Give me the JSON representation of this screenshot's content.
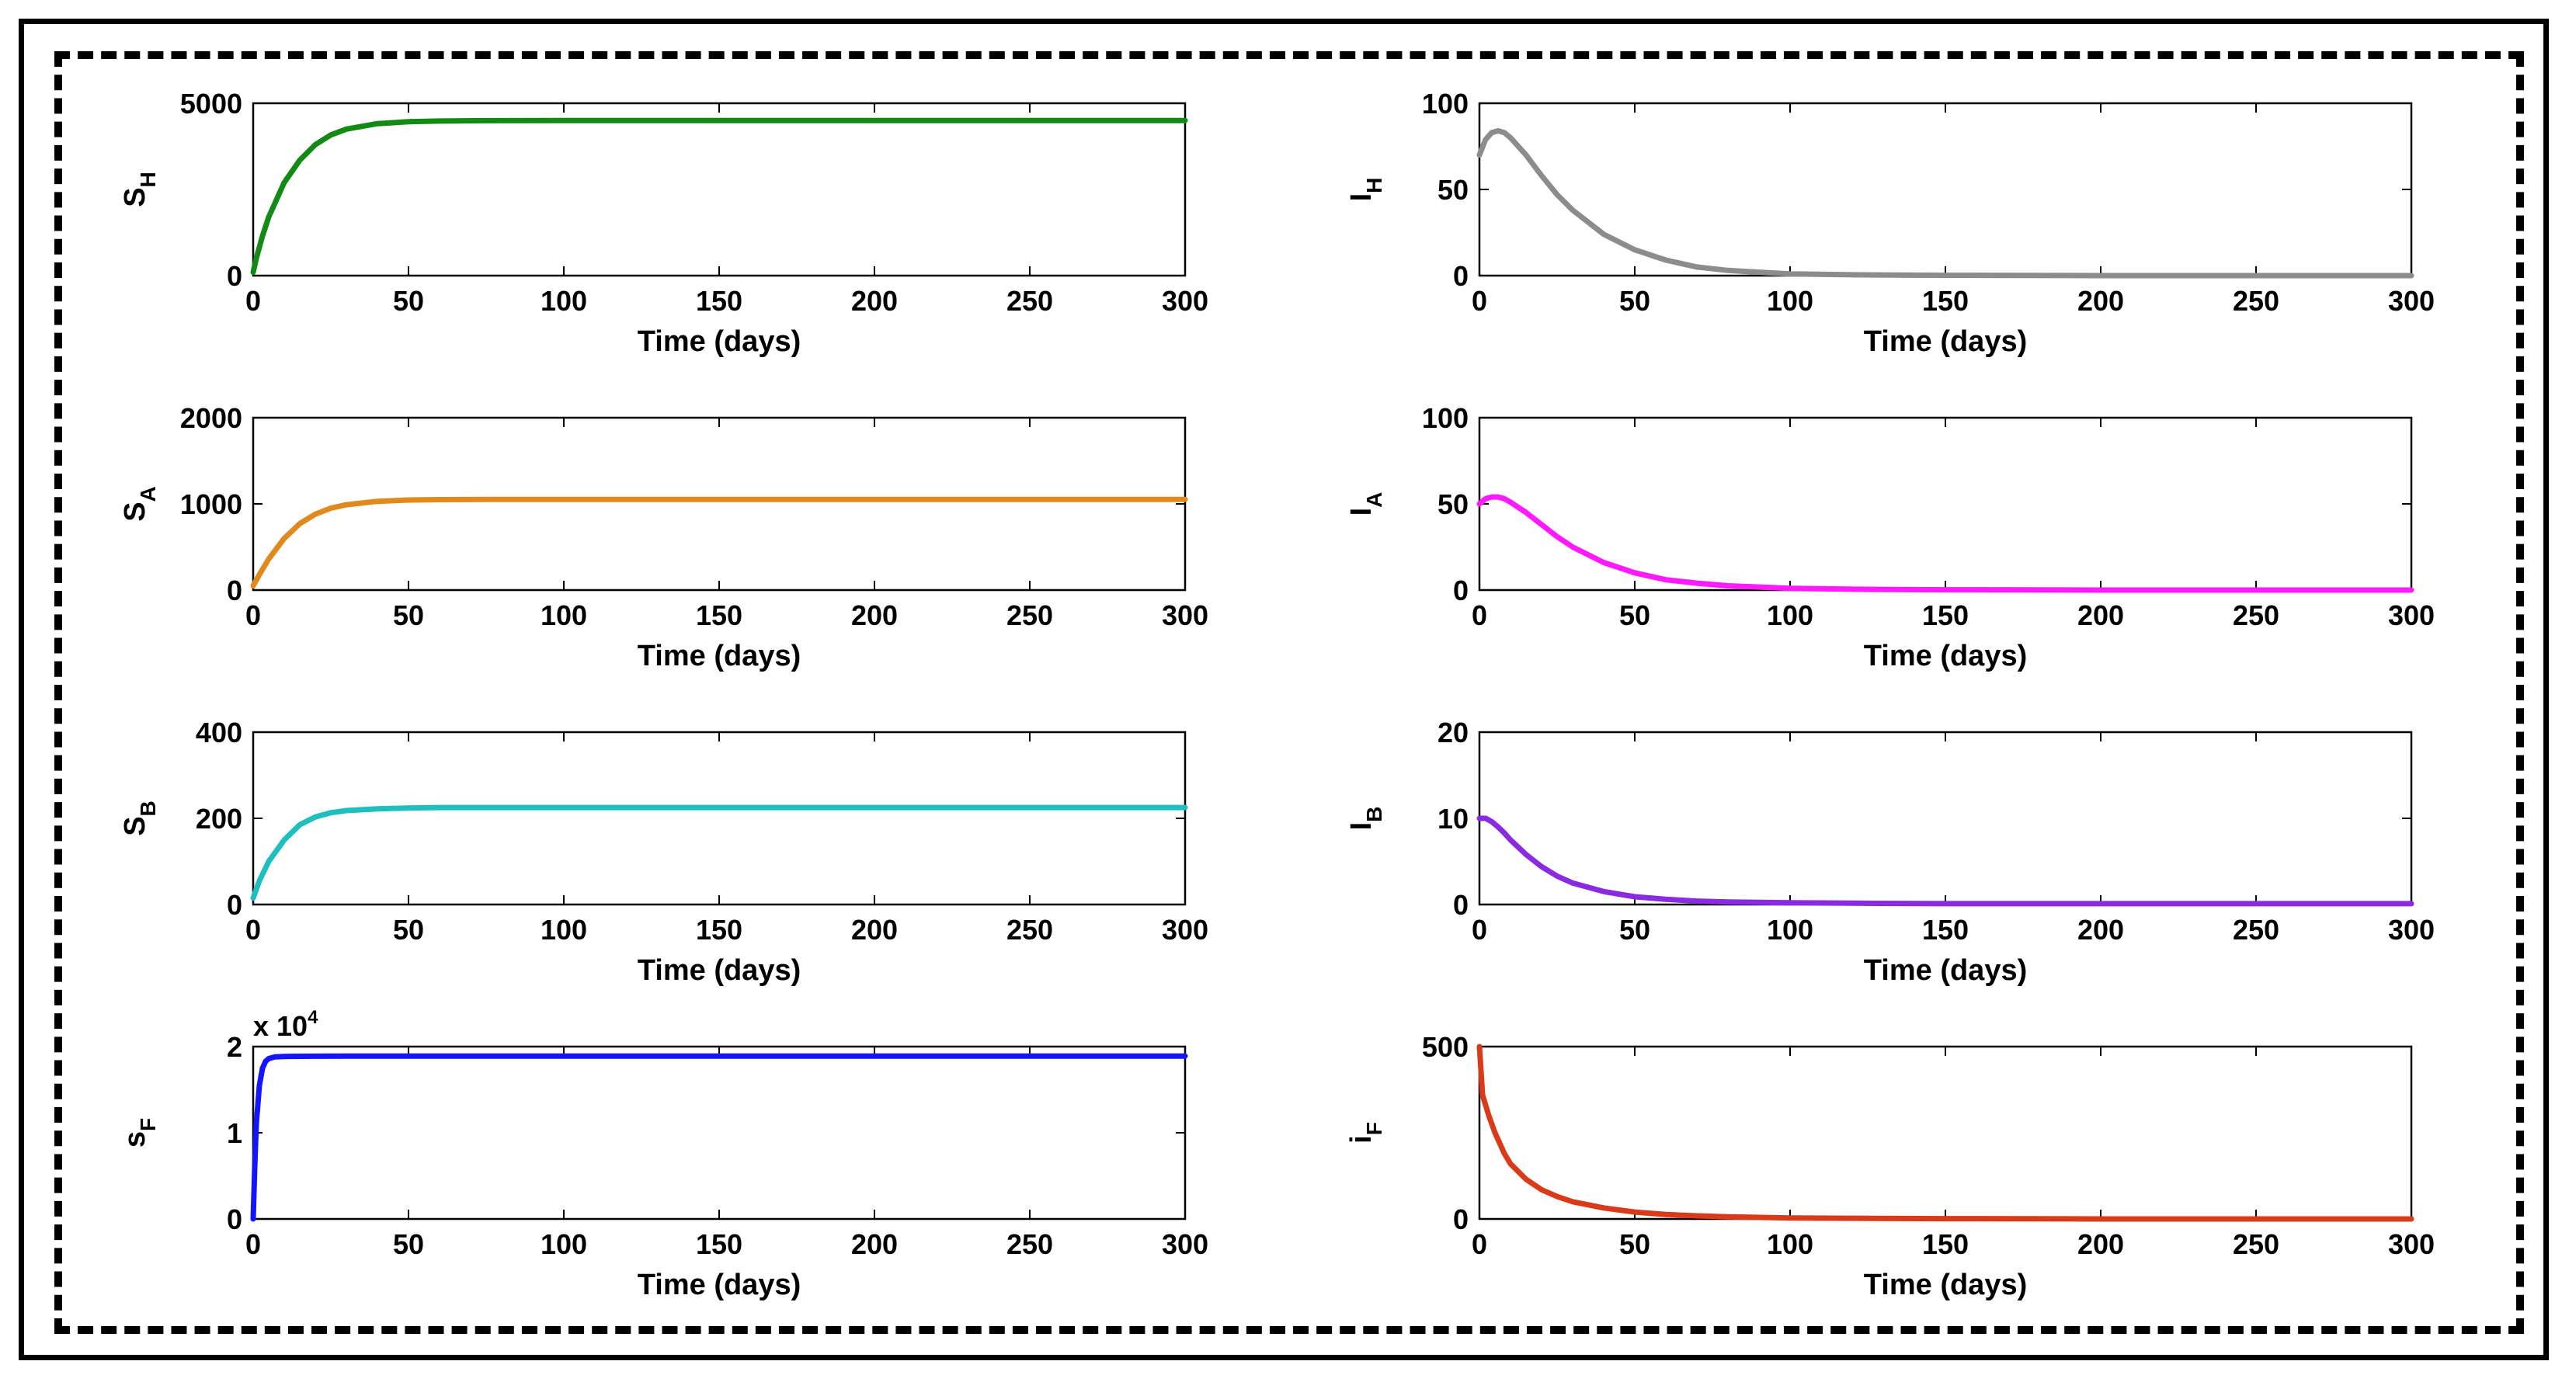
{
  "chart_data": [
    {
      "type": "line",
      "panel": "S_H",
      "color": "#138a13",
      "ylabel": "S",
      "ylabel_sub": "H",
      "xlabel": "Time (days)",
      "xlim": [
        0,
        300
      ],
      "ylim": [
        0,
        5000
      ],
      "xticks": [
        "0",
        "50",
        "100",
        "150",
        "200",
        "250",
        "300"
      ],
      "yticks": [
        "0",
        "5000"
      ],
      "ytick_values": [
        0,
        5000
      ],
      "exponent": "",
      "x": [
        0,
        1,
        3,
        5,
        10,
        15,
        20,
        25,
        30,
        40,
        50,
        60,
        75,
        100,
        150,
        200,
        250,
        300
      ],
      "y": [
        100,
        500,
        1150,
        1700,
        2700,
        3350,
        3800,
        4080,
        4250,
        4410,
        4465,
        4485,
        4495,
        4500,
        4500,
        4500,
        4500,
        4500
      ]
    },
    {
      "type": "line",
      "panel": "I_H",
      "color": "#8c8c8c",
      "ylabel": "I",
      "ylabel_sub": "H",
      "xlabel": "Time (days)",
      "xlim": [
        0,
        300
      ],
      "ylim": [
        0,
        100
      ],
      "xticks": [
        "0",
        "50",
        "100",
        "150",
        "200",
        "250",
        "300"
      ],
      "yticks": [
        "0",
        "50",
        "100"
      ],
      "ytick_values": [
        0,
        50,
        100
      ],
      "exponent": "",
      "x": [
        0,
        2,
        4,
        6,
        8,
        10,
        15,
        20,
        25,
        30,
        40,
        50,
        60,
        70,
        80,
        90,
        100,
        120,
        150,
        200,
        250,
        300
      ],
      "y": [
        70,
        79,
        83,
        84,
        83,
        80,
        70,
        58,
        47,
        38,
        24,
        15,
        9,
        5,
        3,
        2,
        1,
        0.5,
        0.2,
        0,
        0,
        0
      ]
    },
    {
      "type": "line",
      "panel": "S_A",
      "color": "#e08a1e",
      "ylabel": "S",
      "ylabel_sub": "A",
      "xlabel": "Time (days)",
      "xlim": [
        0,
        300
      ],
      "ylim": [
        0,
        2000
      ],
      "xticks": [
        "0",
        "50",
        "100",
        "150",
        "200",
        "250",
        "300"
      ],
      "yticks": [
        "0",
        "1000",
        "2000"
      ],
      "ytick_values": [
        0,
        1000,
        2000
      ],
      "exponent": "",
      "x": [
        0,
        2,
        5,
        10,
        15,
        20,
        25,
        30,
        40,
        50,
        60,
        75,
        100,
        150,
        200,
        250,
        300
      ],
      "y": [
        50,
        180,
        360,
        600,
        770,
        880,
        950,
        990,
        1030,
        1045,
        1050,
        1052,
        1052,
        1052,
        1052,
        1052,
        1052
      ]
    },
    {
      "type": "line",
      "panel": "I_A",
      "color": "#ff1aff",
      "ylabel": "I",
      "ylabel_sub": "A",
      "xlabel": "Time (days)",
      "xlim": [
        0,
        300
      ],
      "ylim": [
        0,
        100
      ],
      "xticks": [
        "0",
        "50",
        "100",
        "150",
        "200",
        "250",
        "300"
      ],
      "yticks": [
        "0",
        "50",
        "100"
      ],
      "ytick_values": [
        0,
        50,
        100
      ],
      "exponent": "",
      "x": [
        0,
        2,
        4,
        6,
        8,
        10,
        15,
        20,
        25,
        30,
        40,
        50,
        60,
        70,
        80,
        100,
        120,
        150,
        200,
        250,
        300
      ],
      "y": [
        50,
        53,
        54,
        54,
        53,
        51,
        45,
        38,
        31,
        25,
        16,
        10,
        6,
        4,
        2.5,
        1,
        0.5,
        0.2,
        0,
        0,
        0
      ]
    },
    {
      "type": "line",
      "panel": "S_B",
      "color": "#1fbfbf",
      "ylabel": "S",
      "ylabel_sub": "B",
      "xlabel": "Time (days)",
      "xlim": [
        0,
        300
      ],
      "ylim": [
        0,
        400
      ],
      "xticks": [
        "0",
        "50",
        "100",
        "150",
        "200",
        "250",
        "300"
      ],
      "yticks": [
        "0",
        "200",
        "400"
      ],
      "ytick_values": [
        0,
        200,
        400
      ],
      "exponent": "",
      "x": [
        0,
        2,
        5,
        10,
        15,
        20,
        25,
        30,
        40,
        50,
        60,
        75,
        100,
        150,
        200,
        250,
        300
      ],
      "y": [
        15,
        55,
        100,
        150,
        185,
        203,
        213,
        218,
        222,
        224,
        225,
        225,
        225,
        225,
        225,
        225,
        225
      ]
    },
    {
      "type": "line",
      "panel": "I_B",
      "color": "#8a2be2",
      "ylabel": "I",
      "ylabel_sub": "B",
      "xlabel": "Time (days)",
      "xlim": [
        0,
        300
      ],
      "ylim": [
        0,
        20
      ],
      "xticks": [
        "0",
        "50",
        "100",
        "150",
        "200",
        "250",
        "300"
      ],
      "yticks": [
        "0",
        "10",
        "20"
      ],
      "ytick_values": [
        0,
        10,
        20
      ],
      "exponent": "",
      "x": [
        0,
        2,
        4,
        6,
        8,
        10,
        15,
        20,
        25,
        30,
        40,
        50,
        60,
        70,
        80,
        100,
        120,
        150,
        200,
        250,
        300
      ],
      "y": [
        10,
        10,
        9.6,
        9,
        8.3,
        7.5,
        5.8,
        4.4,
        3.3,
        2.5,
        1.5,
        0.9,
        0.6,
        0.4,
        0.3,
        0.2,
        0.15,
        0.1,
        0.1,
        0.1,
        0.1
      ]
    },
    {
      "type": "line",
      "panel": "s_F",
      "color": "#1414ff",
      "ylabel": "s",
      "ylabel_sub": "F",
      "xlabel": "Time (days)",
      "xlim": [
        0,
        300
      ],
      "ylim": [
        0,
        20000
      ],
      "xticks": [
        "0",
        "50",
        "100",
        "150",
        "200",
        "250",
        "300"
      ],
      "yticks": [
        "0",
        "1",
        "2"
      ],
      "ytick_values": [
        0,
        10000,
        20000
      ],
      "exponent": "x 10",
      "exponent_power": "4",
      "x": [
        0,
        0.5,
        1,
        2,
        3,
        4,
        5,
        7,
        10,
        15,
        20,
        30,
        50,
        100,
        150,
        200,
        250,
        300
      ],
      "y": [
        0,
        6000,
        11000,
        15500,
        17500,
        18300,
        18600,
        18800,
        18850,
        18870,
        18880,
        18890,
        18900,
        18900,
        18900,
        18900,
        18900,
        18900
      ]
    },
    {
      "type": "line",
      "panel": "i_F",
      "color": "#d93a1a",
      "ylabel": "i",
      "ylabel_sub": "F",
      "xlabel": "Time (days)",
      "xlim": [
        0,
        300
      ],
      "ylim": [
        0,
        500
      ],
      "xticks": [
        "0",
        "50",
        "100",
        "150",
        "200",
        "250",
        "300"
      ],
      "yticks": [
        "0",
        "500"
      ],
      "ytick_values": [
        0,
        500
      ],
      "exponent": "",
      "x": [
        0,
        1,
        3,
        5,
        8,
        10,
        15,
        20,
        25,
        30,
        40,
        50,
        60,
        70,
        80,
        100,
        120,
        150,
        200,
        250,
        300
      ],
      "y": [
        500,
        360,
        300,
        250,
        190,
        160,
        115,
        85,
        65,
        50,
        32,
        20,
        13,
        9,
        6,
        3,
        2,
        1,
        0,
        0,
        0
      ]
    }
  ]
}
